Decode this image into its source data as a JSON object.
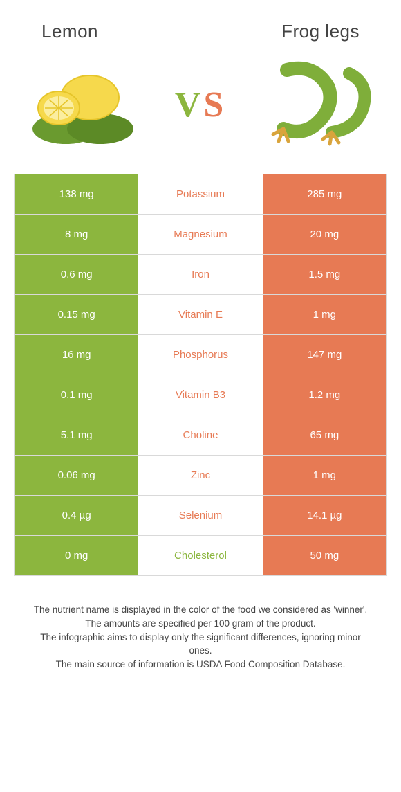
{
  "colors": {
    "left": "#8cb63e",
    "right": "#e77a54",
    "vs_v": "#8cb63e",
    "vs_s": "#e77a54",
    "row_border": "#d9d9d9",
    "title": "#444444"
  },
  "header": {
    "left_title": "Lemon",
    "right_title": "Frog legs",
    "vs_v": "V",
    "vs_s": "S"
  },
  "rows": [
    {
      "left": "138 mg",
      "label": "Potassium",
      "right": "285 mg",
      "winner": "right"
    },
    {
      "left": "8 mg",
      "label": "Magnesium",
      "right": "20 mg",
      "winner": "right"
    },
    {
      "left": "0.6 mg",
      "label": "Iron",
      "right": "1.5 mg",
      "winner": "right"
    },
    {
      "left": "0.15 mg",
      "label": "Vitamin E",
      "right": "1 mg",
      "winner": "right"
    },
    {
      "left": "16 mg",
      "label": "Phosphorus",
      "right": "147 mg",
      "winner": "right"
    },
    {
      "left": "0.1 mg",
      "label": "Vitamin B3",
      "right": "1.2 mg",
      "winner": "right"
    },
    {
      "left": "5.1 mg",
      "label": "Choline",
      "right": "65 mg",
      "winner": "right"
    },
    {
      "left": "0.06 mg",
      "label": "Zinc",
      "right": "1 mg",
      "winner": "right"
    },
    {
      "left": "0.4 µg",
      "label": "Selenium",
      "right": "14.1 µg",
      "winner": "right"
    },
    {
      "left": "0 mg",
      "label": "Cholesterol",
      "right": "50 mg",
      "winner": "left"
    }
  ],
  "footer": {
    "p1": "The nutrient name is displayed in the color of the food we considered as 'winner'.",
    "p2": "The amounts are specified per 100 gram of the product.",
    "p3": "The infographic aims to display only the significant differences, ignoring minor ones.",
    "p4": "The main source of information is USDA Food Composition Database."
  }
}
